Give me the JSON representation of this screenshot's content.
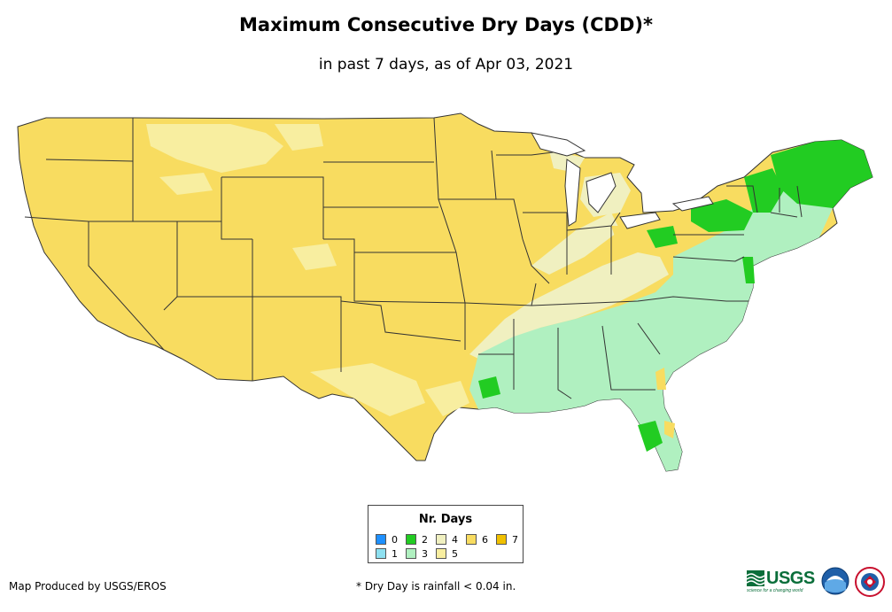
{
  "title": "Maximum Consecutive Dry Days (CDD)*",
  "subtitle": "in past 7 days, as of Apr 03, 2021",
  "legend": {
    "title": "Nr. Days",
    "items": [
      {
        "label": "0",
        "color": "#1e90ff"
      },
      {
        "label": "1",
        "color": "#8ee0f0"
      },
      {
        "label": "2",
        "color": "#22cc22"
      },
      {
        "label": "3",
        "color": "#b0f0c0"
      },
      {
        "label": "4",
        "color": "#f0f0c0"
      },
      {
        "label": "5",
        "color": "#f8eea0"
      },
      {
        "label": "6",
        "color": "#f8dc60"
      },
      {
        "label": "7",
        "color": "#f0c000"
      }
    ]
  },
  "footer": {
    "producer": "Map Produced by USGS/EROS",
    "note": "* Dry Day is rainfall < 0.04 in."
  },
  "logos": {
    "usgs": "USGS",
    "usgs_tagline": "science for a changing world",
    "noaa": "noaa",
    "nws": "NATIONAL WEATHER SERVICE"
  },
  "colors": {
    "state_border": "#333333",
    "background": "#ffffff"
  }
}
